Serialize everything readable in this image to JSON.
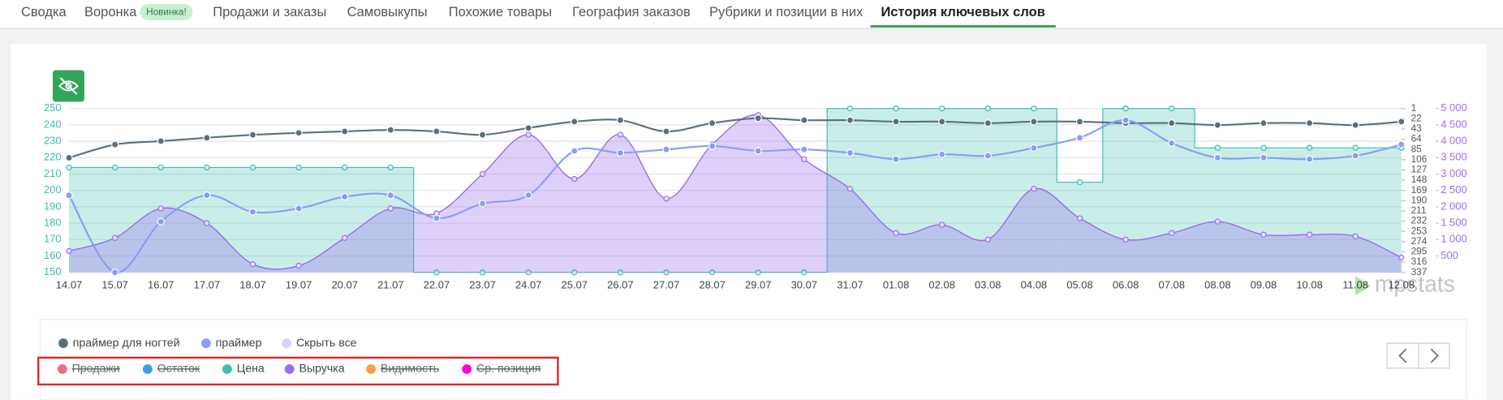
{
  "tabs": [
    {
      "label": "Сводка"
    },
    {
      "label": "Воронка",
      "badge": "Новинка!"
    },
    {
      "label": "Продажи и заказы"
    },
    {
      "label": "Самовыкупы"
    },
    {
      "label": "Похожие товары"
    },
    {
      "label": "География заказов"
    },
    {
      "label": "Рубрики и позиции в них"
    },
    {
      "label": "История ключевых слов"
    }
  ],
  "active_tab": 7,
  "watermark": "mpstats",
  "chart_data": {
    "type": "line",
    "categories": [
      "14.07",
      "15.07",
      "16.07",
      "17.07",
      "18.07",
      "19.07",
      "20.07",
      "21.07",
      "22.07",
      "23.07",
      "24.07",
      "25.07",
      "26.07",
      "27.07",
      "28.07",
      "29.07",
      "30.07",
      "31.07",
      "01.08",
      "02.08",
      "03.08",
      "04.08",
      "05.08",
      "06.08",
      "07.08",
      "08.08",
      "09.08",
      "10.08",
      "11.08",
      "12.08"
    ],
    "ylim": [
      150,
      250
    ],
    "yticks": [
      150,
      160,
      170,
      180,
      190,
      200,
      210,
      220,
      230,
      240,
      250
    ],
    "y2lim": [
      337,
      1
    ],
    "y2ticks": [
      1,
      22,
      43,
      64,
      85,
      106,
      127,
      148,
      169,
      190,
      211,
      232,
      253,
      274,
      295,
      316,
      337
    ],
    "y3lim": [
      0,
      5000
    ],
    "y3ticks": [
      500,
      {
        "value": 1000,
        "label": "1 000"
      },
      {
        "value": 1500,
        "label": "1 500"
      },
      {
        "value": 2000,
        "label": "2 000"
      },
      {
        "value": 2500,
        "label": "2 500"
      },
      {
        "value": 3000,
        "label": "3 000"
      },
      {
        "value": 3500,
        "label": "3 500"
      },
      {
        "value": 4000,
        "label": "4 000"
      },
      {
        "value": 4500,
        "label": "4 500"
      },
      {
        "value": 5000,
        "label": "5 000"
      }
    ],
    "grid": true,
    "series": [
      {
        "name": "праймер для ногтей",
        "color": "#5b6f7b",
        "axis": "y2",
        "values": [
          102,
          75,
          68,
          61,
          55,
          51,
          48,
          45,
          48,
          55,
          41,
          28,
          25,
          48,
          31,
          21,
          25,
          25,
          28,
          28,
          31,
          28,
          28,
          31,
          31,
          35,
          31,
          31,
          35,
          28
        ]
      },
      {
        "name": "праймер",
        "color": "#8c9cf6",
        "axis": "y2",
        "values": [
          179,
          337,
          233,
          179,
          213,
          206,
          182,
          179,
          226,
          196,
          179,
          88,
          92,
          85,
          78,
          88,
          85,
          92,
          105,
          95,
          98,
          82,
          61,
          25,
          72,
          102,
          102,
          105,
          98,
          75
        ]
      }
    ],
    "hide_all_label": "Скрыть все",
    "hide_all_color": "#dcd0fa",
    "metrics": [
      {
        "name": "Продажи",
        "color": "#f06a86",
        "active": false
      },
      {
        "name": "Остаток",
        "color": "#3ba0e8",
        "active": false
      },
      {
        "name": "Цена",
        "color": "#3dbdb0",
        "active": true,
        "axis": "y",
        "step": true,
        "values": [
          214,
          214,
          214,
          214,
          214,
          214,
          214,
          214,
          150,
          150,
          150,
          150,
          150,
          150,
          150,
          150,
          150,
          250,
          250,
          250,
          250,
          250,
          205,
          250,
          250,
          226,
          226,
          226,
          226,
          226
        ]
      },
      {
        "name": "Выручка",
        "color": "#9a6cf0",
        "active": true,
        "axis": "y3",
        "area": true,
        "values": [
          650,
          1050,
          1950,
          1500,
          250,
          200,
          1050,
          1950,
          1800,
          3000,
          4200,
          2850,
          4200,
          2250,
          3900,
          4800,
          3450,
          2550,
          1200,
          1450,
          1000,
          2550,
          1650,
          1000,
          1200,
          1550,
          1150,
          1150,
          1100,
          450
        ]
      },
      {
        "name": "Видимость",
        "color": "#f59e42",
        "active": false
      },
      {
        "name": "Ср. позиция",
        "color": "#ff00dd",
        "active": false
      }
    ]
  }
}
